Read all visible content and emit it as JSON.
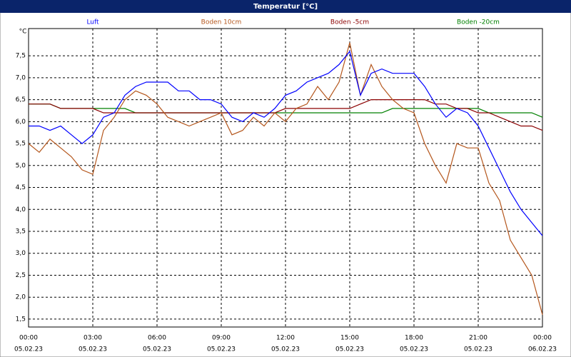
{
  "chart_data": {
    "type": "line",
    "title": "Temperatur [°C]",
    "ylabel": "°C",
    "x": [
      0,
      0.5,
      1,
      1.5,
      2,
      2.5,
      3,
      3.5,
      4,
      4.5,
      5,
      5.5,
      6,
      6.5,
      7,
      7.5,
      8,
      8.5,
      9,
      9.5,
      10,
      10.5,
      11,
      11.5,
      12,
      12.5,
      13,
      13.5,
      14,
      14.5,
      15,
      15.5,
      16,
      16.5,
      17,
      17.5,
      18,
      18.5,
      19,
      19.5,
      20,
      20.5,
      21,
      21.5,
      22,
      22.5,
      23,
      23.5,
      24
    ],
    "series": [
      {
        "name": "Luft",
        "color": "#0000ff",
        "values": [
          5.9,
          5.9,
          5.8,
          5.9,
          5.7,
          5.5,
          5.7,
          6.1,
          6.2,
          6.6,
          6.8,
          6.9,
          6.9,
          6.9,
          6.7,
          6.7,
          6.5,
          6.5,
          6.4,
          6.1,
          6.0,
          6.2,
          6.1,
          6.3,
          6.6,
          6.7,
          6.9,
          7.0,
          7.1,
          7.3,
          7.6,
          6.6,
          7.1,
          7.2,
          7.1,
          7.1,
          7.1,
          6.8,
          6.4,
          6.1,
          6.3,
          6.2,
          5.9,
          5.4,
          4.9,
          4.4,
          4.0,
          3.7,
          3.4
        ]
      },
      {
        "name": "Boden 10cm",
        "color": "#b4561c",
        "values": [
          5.5,
          5.3,
          5.6,
          5.4,
          5.2,
          4.9,
          4.8,
          5.8,
          6.1,
          6.5,
          6.7,
          6.6,
          6.4,
          6.1,
          6.0,
          5.9,
          6.0,
          6.1,
          6.2,
          5.7,
          5.8,
          6.1,
          5.9,
          6.2,
          6.0,
          6.3,
          6.4,
          6.8,
          6.5,
          6.9,
          7.8,
          6.6,
          7.3,
          6.8,
          6.5,
          6.3,
          6.2,
          5.5,
          5.0,
          4.6,
          5.5,
          5.4,
          5.4,
          4.6,
          4.2,
          3.3,
          2.9,
          2.5,
          1.6
        ]
      },
      {
        "name": "Boden -5cm",
        "color": "#8b0000",
        "values": [
          6.4,
          6.4,
          6.4,
          6.3,
          6.3,
          6.3,
          6.3,
          6.2,
          6.2,
          6.2,
          6.2,
          6.2,
          6.2,
          6.2,
          6.2,
          6.2,
          6.2,
          6.2,
          6.2,
          6.2,
          6.2,
          6.2,
          6.2,
          6.2,
          6.3,
          6.3,
          6.3,
          6.3,
          6.3,
          6.3,
          6.3,
          6.4,
          6.5,
          6.5,
          6.5,
          6.5,
          6.5,
          6.5,
          6.4,
          6.4,
          6.3,
          6.3,
          6.2,
          6.2,
          6.1,
          6.0,
          5.9,
          5.9,
          5.8
        ]
      },
      {
        "name": "Boden -20cm",
        "color": "#008000",
        "values": [
          6.4,
          6.4,
          6.4,
          6.3,
          6.3,
          6.3,
          6.3,
          6.3,
          6.3,
          6.3,
          6.2,
          6.2,
          6.2,
          6.2,
          6.2,
          6.2,
          6.2,
          6.2,
          6.2,
          6.2,
          6.2,
          6.2,
          6.2,
          6.2,
          6.2,
          6.2,
          6.2,
          6.2,
          6.2,
          6.2,
          6.2,
          6.2,
          6.2,
          6.2,
          6.3,
          6.3,
          6.3,
          6.3,
          6.3,
          6.3,
          6.3,
          6.3,
          6.3,
          6.2,
          6.2,
          6.2,
          6.2,
          6.2,
          6.1
        ]
      }
    ],
    "xlim": [
      0,
      24
    ],
    "xticks": [
      {
        "value": 0,
        "label": "00:00"
      },
      {
        "value": 3,
        "label": "03:00"
      },
      {
        "value": 6,
        "label": "06:00"
      },
      {
        "value": 9,
        "label": "09:00"
      },
      {
        "value": 12,
        "label": "12:00"
      },
      {
        "value": 15,
        "label": "15:00"
      },
      {
        "value": 18,
        "label": "18:00"
      },
      {
        "value": 21,
        "label": "21:00"
      },
      {
        "value": 24,
        "label": "00:00"
      }
    ],
    "xtick_dates": [
      "05.02.23",
      "05.02.23",
      "05.02.23",
      "05.02.23",
      "05.02.23",
      "05.02.23",
      "05.02.23",
      "05.02.23",
      "06.02.23"
    ],
    "ylim": [
      1.32,
      8.12
    ],
    "yticks": [
      {
        "value": 1.5,
        "label": "1,5"
      },
      {
        "value": 2,
        "label": "2,0"
      },
      {
        "value": 2.5,
        "label": "2,5"
      },
      {
        "value": 3,
        "label": "3,0"
      },
      {
        "value": 3.5,
        "label": "3,5"
      },
      {
        "value": 4,
        "label": "4,0"
      },
      {
        "value": 4.5,
        "label": "4,5"
      },
      {
        "value": 5,
        "label": "5,0"
      },
      {
        "value": 5.5,
        "label": "5,5"
      },
      {
        "value": 6,
        "label": "6,0"
      },
      {
        "value": 6.5,
        "label": "6,5"
      },
      {
        "value": 7,
        "label": "7,0"
      },
      {
        "value": 7.5,
        "label": "7,5"
      }
    ],
    "grid": true
  }
}
